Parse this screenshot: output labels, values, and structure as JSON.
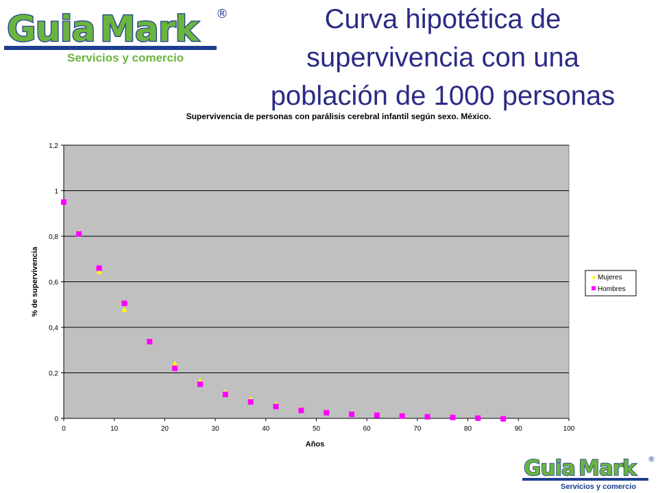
{
  "logo": {
    "brand_prefix": "Guia",
    "brand_suffix": "Mark",
    "registered": "®",
    "tagline": "Servicios y comercio"
  },
  "slide": {
    "title_lines": [
      "Curva hipotética de",
      "supervivencia con una",
      "población de 1000 personas"
    ]
  },
  "colors": {
    "title": "#2a2b84",
    "plot_bg": "#c0c0c0",
    "mujeres": "#ffff00",
    "hombres": "#ff00ff",
    "brand_green": "#6bb440",
    "brand_blue": "#1d3d8f"
  },
  "chart_data": {
    "type": "scatter",
    "title": "Supervivencia de personas con parálisis cerebral infantil según sexo. México.",
    "xlabel": "Años",
    "ylabel": "% de supervivencia",
    "xlim": [
      0,
      100
    ],
    "ylim": [
      0,
      1.2
    ],
    "x_ticks": [
      "0",
      "10",
      "20",
      "30",
      "40",
      "50",
      "60",
      "70",
      "80",
      "90",
      "100"
    ],
    "y_ticks": [
      "0",
      "0,2",
      "0,4",
      "0,6",
      "0,8",
      "1",
      "1,2"
    ],
    "grid": true,
    "legend_position": "right",
    "series": [
      {
        "name": "Mujeres",
        "marker": "triangle",
        "x": [
          0,
          3,
          7,
          12,
          17,
          22,
          27,
          32,
          37,
          42,
          47,
          52,
          57,
          62,
          67,
          72,
          77,
          82,
          87
        ],
        "y": [
          0.95,
          0.815,
          0.645,
          0.478,
          0.34,
          0.24,
          0.165,
          0.115,
          0.085,
          0.062,
          0.04,
          0.027,
          0.02,
          0.016,
          0.013,
          0.009,
          0.006,
          0.003,
          0.0
        ]
      },
      {
        "name": "Hombres",
        "marker": "square",
        "x": [
          0,
          3,
          7,
          12,
          17,
          22,
          27,
          32,
          37,
          42,
          47,
          52,
          57,
          62,
          67,
          72,
          77,
          82,
          87
        ],
        "y": [
          0.95,
          0.81,
          0.66,
          0.505,
          0.337,
          0.22,
          0.15,
          0.105,
          0.072,
          0.052,
          0.035,
          0.025,
          0.018,
          0.014,
          0.01,
          0.007,
          0.004,
          0.001,
          -0.002
        ]
      }
    ]
  }
}
